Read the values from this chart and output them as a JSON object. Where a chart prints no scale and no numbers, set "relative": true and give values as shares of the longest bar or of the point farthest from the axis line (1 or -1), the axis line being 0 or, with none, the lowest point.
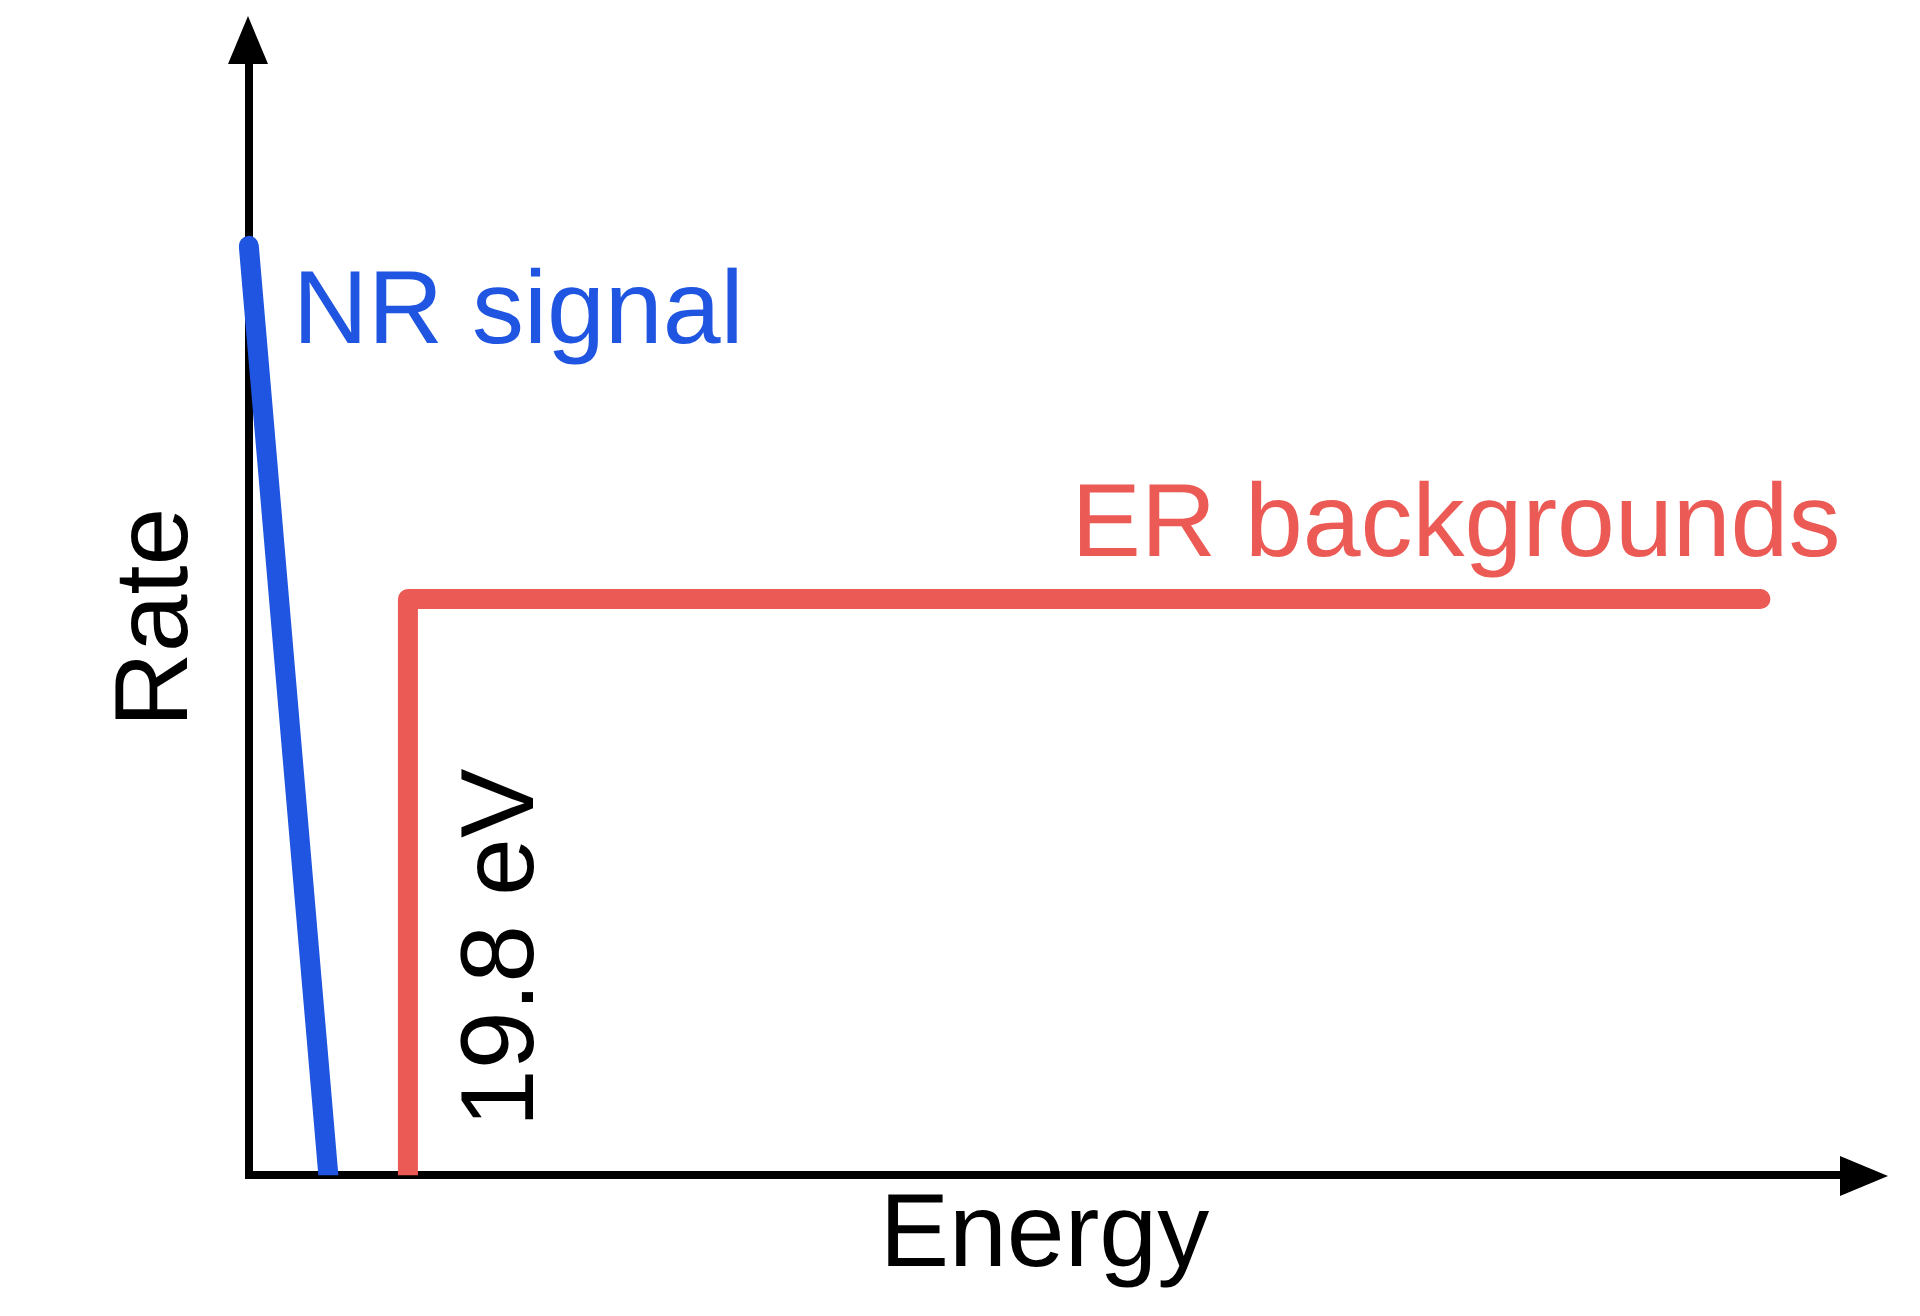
{
  "chart_data": {
    "type": "line",
    "relative": true,
    "xlabel": "Energy",
    "ylabel": "Rate",
    "legend": false,
    "grid": false,
    "categories": [
      null,
      null,
      null,
      null,
      null,
      null,
      null,
      null,
      null,
      null,
      null,
      null,
      null,
      null,
      null,
      null,
      null,
      null,
      null,
      null,
      null
    ],
    "series": [
      {
        "name": "NR signal",
        "type": "line",
        "color": "#1f55e0",
        "values": [
          1,
          0,
          null,
          null,
          null,
          null,
          null,
          null,
          null,
          null,
          null,
          null,
          null,
          null,
          null,
          null,
          null,
          null,
          null,
          null,
          null
        ]
      },
      {
        "name": "ER backgrounds",
        "type": "step",
        "color": "#eb5a55",
        "values": [
          null,
          null,
          0,
          0.62,
          0.62,
          0.62,
          0.62,
          0.62,
          0.62,
          0.62,
          0.62,
          0.62,
          0.62,
          0.62,
          0.62,
          0.62,
          0.62,
          0.62,
          0.62,
          0.62,
          null
        ]
      }
    ],
    "annotations": [
      "19.8 eV"
    ]
  }
}
